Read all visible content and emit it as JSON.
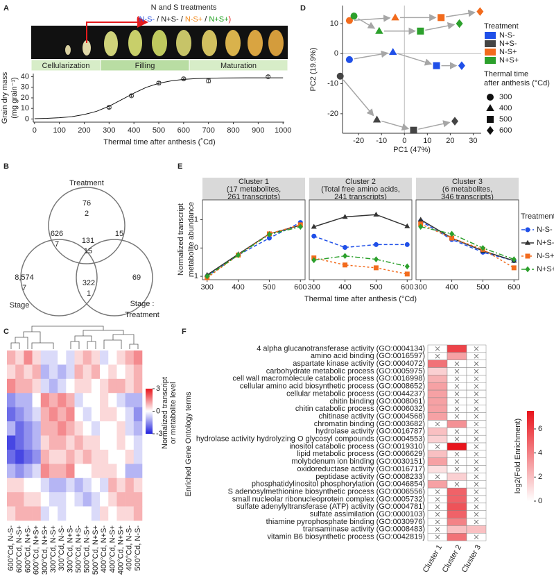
{
  "chart_data": [
    {
      "type": "growth",
      "label": "A",
      "annotation": "N and S treatments",
      "annotation_parts": [
        {
          "text": "(",
          "color": "#e41a1c"
        },
        {
          "text": "N-S-",
          "color": "#2b52e0"
        },
        {
          "text": " / ",
          "color": "#111111"
        },
        {
          "text": "N+S-",
          "color": "#111111"
        },
        {
          "text": " / ",
          "color": "#111111"
        },
        {
          "text": "N-S+",
          "color": "#f28a1c"
        },
        {
          "text": " / ",
          "color": "#111111"
        },
        {
          "text": "N+S+",
          "color": "#1a9e1a"
        },
        {
          "text": ")",
          "color": "#e41a1c"
        }
      ],
      "stages": [
        "Cellularization",
        "Filling",
        "Maturation"
      ],
      "xlabel": "Thermal time after anthesis (˚Cd)",
      "ylabel": [
        "Grain dry mass",
        "(mg grain⁻¹)"
      ],
      "xlim": [
        -5,
        1005
      ],
      "ylim": [
        -3,
        43
      ],
      "xticks": [
        0,
        100,
        200,
        300,
        400,
        500,
        600,
        700,
        800,
        900,
        1000
      ],
      "yticks": [
        0,
        10,
        20,
        30,
        40
      ],
      "series": [
        {
          "style": "points",
          "color": "#444444",
          "x": [
            300,
            390,
            500,
            600,
            700,
            940
          ],
          "values": [
            11,
            22,
            34,
            38,
            36,
            40
          ],
          "errors": [
            1.3,
            1.2,
            1.5,
            1,
            1.8,
            1
          ]
        },
        {
          "style": "line",
          "color": "#111111",
          "x": [
            0,
            50,
            100,
            150,
            200,
            250,
            300,
            350,
            400,
            450,
            500,
            550,
            600,
            650,
            700,
            750,
            800,
            850,
            900,
            950,
            1000
          ],
          "values": [
            0.3,
            0.6,
            1.2,
            2.2,
            4.2,
            7.3,
            12.1,
            18.2,
            24.5,
            30,
            33.8,
            36.1,
            37.5,
            38.2,
            38.6,
            38.8,
            38.9,
            39,
            39,
            39,
            39
          ]
        }
      ]
    },
    {
      "type": "scatter",
      "label": "D",
      "xlabel": "PC1 (47%)",
      "ylabel": "PC2 (19.9%)",
      "xlim": [
        -27,
        33.5
      ],
      "ylim": [
        -26.5,
        16
      ],
      "xticks": [
        -20,
        -10,
        0,
        10,
        20,
        30
      ],
      "yticks": [
        -20,
        -10,
        0,
        10
      ],
      "zero_lines": true,
      "arrow_color": "#a6a6a6",
      "legend_title": "Treatment",
      "time_title": [
        "Thermal time",
        "after anthesis (°Cd)"
      ],
      "times": [
        300,
        400,
        500,
        600
      ],
      "shapes": [
        "circle",
        "triangle",
        "square",
        "diamond"
      ],
      "series": [
        {
          "name": "N-S-",
          "color": "#1f4fe8",
          "x": [
            -24,
            -5,
            14,
            25
          ],
          "values": [
            -2,
            0.5,
            -4,
            -4
          ]
        },
        {
          "name": "N+S-",
          "color": "#444444",
          "x": [
            -28,
            -12,
            4,
            22
          ],
          "values": [
            -7.5,
            -22,
            -25.5,
            -22.5
          ]
        },
        {
          "name": "N-S+",
          "color": "#f26b1d",
          "x": [
            -24,
            -4,
            16,
            33
          ],
          "values": [
            11,
            12,
            12,
            14
          ]
        },
        {
          "name": "N+S+",
          "color": "#2ca02c",
          "x": [
            -22,
            -11,
            7,
            24
          ],
          "values": [
            12.5,
            7.5,
            7.5,
            10
          ]
        }
      ]
    },
    {
      "type": "venn",
      "label": "B",
      "sets": [
        [
          "Treatment"
        ],
        [
          "Stage"
        ],
        [
          "Stage :",
          "Treatment"
        ]
      ],
      "regions": [
        {
          "count": 76,
          "metabolites": 2
        },
        {
          "count": 626,
          "metabolites": 7
        },
        {
          "count": 131,
          "metabolites": 15
        },
        {
          "count": 15
        },
        {
          "count": {
            "value": 8574,
            "label": "8,574"
          },
          "metabolites": 7
        },
        {
          "count": 322,
          "metabolites": 1
        },
        {
          "count": 69
        }
      ]
    },
    {
      "type": "facet-line",
      "label": "E",
      "xlabel": "Thermal time after anthesis (°Cd)",
      "ylabel": [
        "Normalized transcript",
        "metabolite abundance"
      ],
      "x": [
        300,
        400,
        500,
        600
      ],
      "xlim": [
        285,
        615
      ],
      "ylim": [
        -1.12,
        1.7
      ],
      "yticks": [
        -1,
        0,
        1
      ],
      "xticks": [
        300,
        400,
        500,
        600
      ],
      "legend_title": "Treatment",
      "facets": [
        [
          "Cluster 1",
          "(17 metabolites,",
          "261 transcripts)"
        ],
        [
          "Cluster 2",
          "(Total free amino acids,",
          "241 transcripts)"
        ],
        [
          "Cluster 3",
          "(6 metabolites,",
          "346 transcripts)"
        ]
      ],
      "series": [
        {
          "name": "N-S-",
          "color": "#1f4fe8",
          "marker": "circle",
          "dash": "5 3",
          "values": [
            [
              -1.0,
              -0.25,
              0.35,
              0.9
            ],
            [
              0.42,
              0.02,
              0.12,
              0.12
            ],
            [
              0.95,
              0.3,
              -0.15,
              -0.45
            ]
          ]
        },
        {
          "name": "N+S-",
          "color": "#333333",
          "marker": "triangle",
          "dash": "none",
          "values": [
            [
              -0.95,
              -0.22,
              0.5,
              0.8
            ],
            [
              0.75,
              1.1,
              1.18,
              0.77
            ],
            [
              1.0,
              0.35,
              -0.1,
              -0.45
            ]
          ]
        },
        {
          "name": "N-S+",
          "color": "#f26b1d",
          "marker": "square",
          "dash": "3 3",
          "values": [
            [
              -1.05,
              -0.25,
              0.5,
              0.82
            ],
            [
              -0.35,
              -0.6,
              -0.7,
              -0.92
            ],
            [
              0.85,
              0.35,
              -0.05,
              -0.7
            ]
          ]
        },
        {
          "name": "N+S+",
          "color": "#2ca02c",
          "marker": "diamond",
          "dash": "7 3 2 3",
          "values": [
            [
              -1.0,
              -0.25,
              0.48,
              0.75
            ],
            [
              -0.43,
              -0.28,
              -0.4,
              -0.65
            ],
            [
              0.75,
              0.5,
              0.0,
              -0.4
            ]
          ]
        }
      ]
    },
    {
      "type": "heatmap",
      "label": "C",
      "columns": [
        "600°Cd, N-S-",
        "600°Cd, N-S+",
        "600°Cd, N+S-",
        "600°Cd, N+S+",
        "300°Cd, N+S+",
        "300°Cd, N-S+",
        "300°Cd, N-S-",
        "300°Cd, N+S-",
        "500°Cd, N+S-",
        "500°Cd, N-S+",
        "500°Cd, N+S+",
        "400°Cd, N+S-",
        "400°Cd, N-S+",
        "400°Cd, N+S+",
        "400°Cd, N-S-",
        "500°Cd, N-S-"
      ],
      "clim": [
        -3,
        3
      ],
      "colorbar_ticks": [
        3,
        0,
        -3
      ],
      "colorbar_label": [
        "Normalized transcript",
        "or metabolite level"
      ],
      "values": [
        [
          1,
          0.5,
          1.5,
          0.5,
          -0.5,
          -0.5,
          0,
          -0.5,
          0.5,
          1,
          0.5,
          -0.5,
          0,
          0.5,
          1,
          1.5
        ],
        [
          0.5,
          1,
          0.5,
          1,
          -1,
          -0.5,
          -1,
          -0.5,
          1,
          0.5,
          1,
          0,
          0.5,
          0,
          0.5,
          1
        ],
        [
          1.5,
          1,
          1,
          0.5,
          -0.5,
          -1,
          -0.5,
          0,
          0.5,
          0.5,
          0,
          0.5,
          1,
          1,
          0.5,
          1
        ],
        [
          -1.5,
          -1,
          -1,
          0,
          1.5,
          1,
          1.5,
          1,
          -0.5,
          0,
          0,
          0.5,
          0,
          -0.5,
          -1,
          -1
        ],
        [
          -2,
          -1.5,
          -1,
          -0.5,
          1,
          1.5,
          1,
          1.5,
          0,
          -0.5,
          0,
          0.5,
          0.5,
          0,
          -0.5,
          -1.5
        ],
        [
          -1,
          -2,
          -1.5,
          -1,
          1,
          1,
          1.5,
          1,
          0.5,
          0,
          -0.5,
          0,
          0,
          0.5,
          -0.5,
          -1
        ],
        [
          -2.5,
          -2,
          -1.5,
          -1,
          0.5,
          1,
          1,
          0.5,
          1,
          0.5,
          0.5,
          0,
          0,
          0.5,
          0,
          -0.5
        ],
        [
          -2,
          -2.5,
          -2,
          -1.5,
          1,
          0.5,
          0.5,
          1,
          0.5,
          1,
          0.5,
          0.5,
          0,
          0,
          0.5,
          -0.5
        ],
        [
          -1,
          -1.5,
          -1,
          -0.5,
          1.5,
          1,
          1,
          1.5,
          0,
          0,
          0.5,
          0.5,
          0.5,
          0,
          -1,
          -1
        ],
        [
          0.5,
          0.5,
          0,
          0,
          -0.5,
          -1,
          -1,
          -0.5,
          -1,
          -0.5,
          0,
          -0.5,
          1,
          0.5,
          1,
          0.5
        ],
        [
          1,
          1,
          0.5,
          0.5,
          0,
          -0.5,
          -0.5,
          0,
          -0.5,
          -1,
          -0.5,
          0,
          0.5,
          1,
          1,
          1
        ],
        [
          0.5,
          1,
          1,
          1,
          -0.5,
          0,
          -0.5,
          0,
          0,
          0,
          -0.5,
          0.5,
          0,
          0.5,
          0.5,
          1
        ]
      ]
    },
    {
      "type": "go-heatmap",
      "label": "F",
      "ylabel": "Enriched Gene Ontology terms",
      "columns": [
        "Cluster 1",
        "Cluster 2",
        "Cluster 3"
      ],
      "clim": [
        0,
        7.5
      ],
      "colorbar_ticks": [
        0,
        2,
        4,
        6
      ],
      "colorbar_label": "log2(Fold Enrichment)",
      "terms": [
        "4 alpha glucanotransferase activity (GO:0004134)",
        "amino acid binding (GO:0016597)",
        "aspartate kinase activity (GO:0004072)",
        "carbohydrate metabolic process (GO:0005975)",
        "cell wall macromolecule catabolic process (GO:0016998)",
        "cellular amino acid biosynthetic process (GO:0008652)",
        "cellular metabolic process (GO:0044237)",
        "chitin binding (GO:0008061)",
        "chitin catabolic process (GO:0006032)",
        "chitinase activity (GO:0004568)",
        "chromatin binding (GO:0003682)",
        "hydrolase activity (GO:0016787)",
        "hydrolase activity hydrolyzing O glycosyl compounds (GO:0004553)",
        "inositol catabolic process (GO:0019310)",
        "lipid metabolic process (GO:0006629)",
        "molybdenum ion binding (GO:0030151)",
        "oxidoreductase activity (GO:0016717)",
        "peptidase activity (GO:0008233)",
        "phosphatidylinositol phosphorylation (GO:0046854)",
        "S adenosylmethionine biosynthetic process (GO:0006556)",
        "small nucleolar ribonucleoprotein complex (GO:0005732)",
        "sulfate adenylyltransferase (ATP) activity (GO:0004781)",
        "sulfate assimilation (GO:0000103)",
        "thiamine pyrophosphate binding (GO:0030976)",
        "transaminase activity (GO:0008483)",
        "vitamin B6 biosynthetic process (GO:0042819)"
      ],
      "values": [
        [
          null,
          6,
          null
        ],
        [
          null,
          3,
          null
        ],
        [
          4.5,
          null,
          null
        ],
        [
          1.5,
          null,
          null
        ],
        [
          2.5,
          null,
          null
        ],
        [
          3,
          null,
          null
        ],
        [
          3,
          null,
          null
        ],
        [
          3,
          null,
          null
        ],
        [
          3,
          null,
          null
        ],
        [
          3,
          null,
          null
        ],
        [
          null,
          3.5,
          null
        ],
        [
          2,
          null,
          null
        ],
        [
          1.5,
          null,
          null
        ],
        [
          null,
          7.5,
          null
        ],
        [
          2,
          null,
          null
        ],
        [
          3,
          null,
          null
        ],
        [
          1,
          null,
          null
        ],
        [
          null,
          1.5,
          null
        ],
        [
          3,
          null,
          null
        ],
        [
          null,
          5,
          null
        ],
        [
          null,
          5,
          null
        ],
        [
          null,
          5.5,
          null
        ],
        [
          null,
          5,
          null
        ],
        [
          null,
          4,
          null
        ],
        [
          null,
          2,
          2
        ],
        [
          null,
          4.5,
          null
        ]
      ]
    }
  ]
}
